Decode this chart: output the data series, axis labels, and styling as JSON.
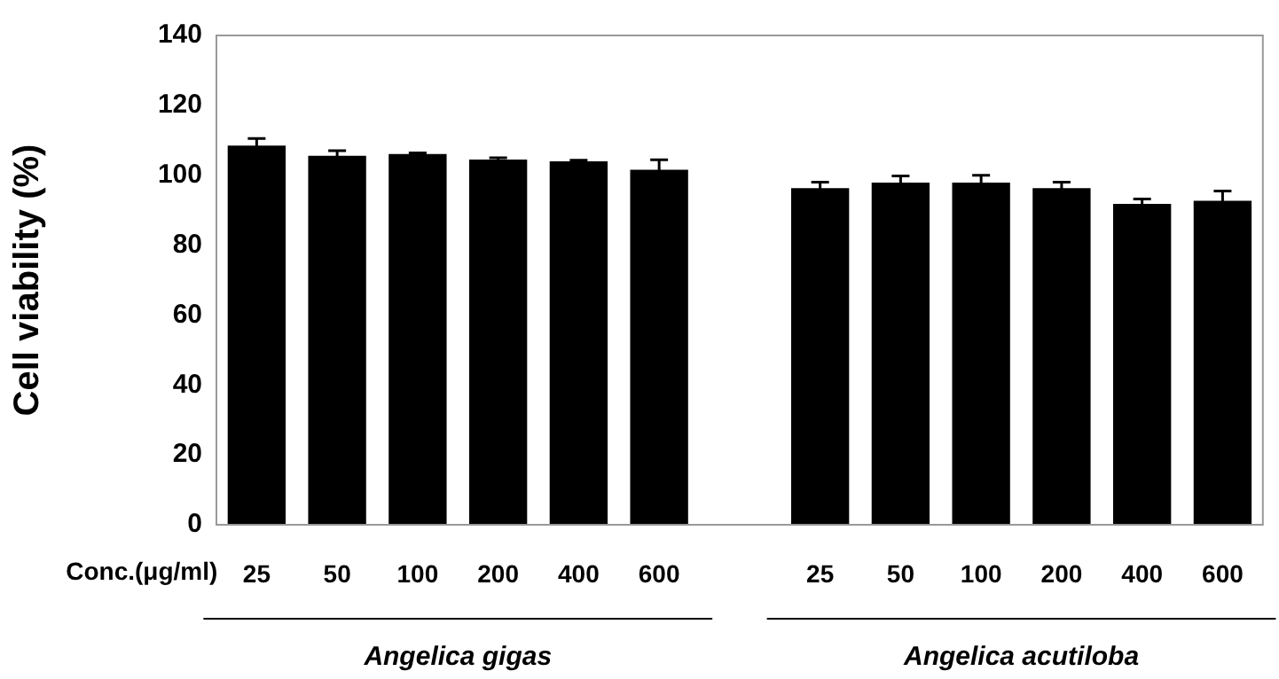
{
  "chart_data": {
    "type": "bar",
    "ylabel": "Cell viability (%)",
    "xlabel": "Conc.(μg/ml)",
    "categories": [
      "25",
      "50",
      "100",
      "200",
      "400",
      "600",
      null,
      "25",
      "50",
      "100",
      "200",
      "400",
      "600"
    ],
    "values": [
      108.5,
      105.6,
      106.1,
      104.5,
      104,
      101.6,
      null,
      96.3,
      97.9,
      97.9,
      96.3,
      91.8,
      92.7
    ],
    "errors": [
      2,
      1.4,
      0.3,
      0.5,
      0.3,
      2.8,
      null,
      1.7,
      1.9,
      2.1,
      1.7,
      1.4,
      2.8
    ],
    "color": "#000000",
    "ylim": [
      0,
      140
    ],
    "yticks": [
      0,
      20,
      40,
      60,
      80,
      100,
      120,
      140
    ],
    "grid": false,
    "legend": false,
    "annotations": [
      "Angelica gigas",
      "Angelica acutiloba"
    ]
  }
}
